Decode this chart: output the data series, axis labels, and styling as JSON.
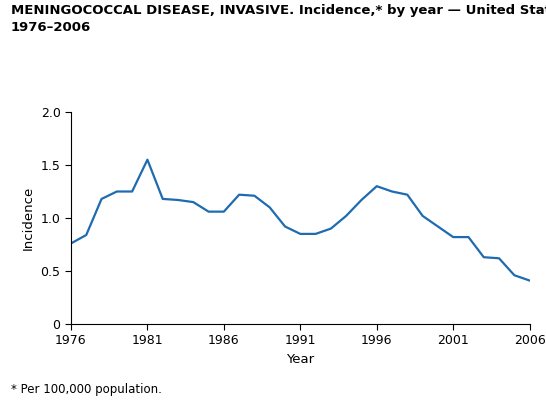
{
  "title_line1": "MENINGOCOCCAL DISEASE, INVASIVE. Incidence,* by year — United States,",
  "title_line2": "1976–2006",
  "xlabel": "Year",
  "ylabel": "Incidence",
  "footnote": "* Per 100,000 population.",
  "line_color": "#1F6BB0",
  "line_width": 1.6,
  "years": [
    1976,
    1977,
    1978,
    1979,
    1980,
    1981,
    1982,
    1983,
    1984,
    1985,
    1986,
    1987,
    1988,
    1989,
    1990,
    1991,
    1992,
    1993,
    1994,
    1995,
    1996,
    1997,
    1998,
    1999,
    2000,
    2001,
    2002,
    2003,
    2004,
    2005,
    2006
  ],
  "values": [
    0.76,
    0.84,
    1.18,
    1.25,
    1.25,
    1.55,
    1.18,
    1.17,
    1.15,
    1.06,
    1.06,
    1.22,
    1.21,
    1.1,
    0.92,
    0.85,
    0.85,
    0.9,
    1.02,
    1.17,
    1.3,
    1.25,
    1.22,
    1.02,
    0.92,
    0.82,
    0.82,
    0.63,
    0.62,
    0.46,
    0.41
  ],
  "xlim": [
    1976,
    2006
  ],
  "ylim": [
    0,
    2.0
  ],
  "xticks": [
    1976,
    1981,
    1986,
    1991,
    1996,
    2001,
    2006
  ],
  "yticks": [
    0,
    0.5,
    1.0,
    1.5,
    2.0
  ],
  "background_color": "#ffffff",
  "title_fontsize": 9.5,
  "axis_label_fontsize": 9.5,
  "tick_fontsize": 9.0,
  "footnote_fontsize": 8.5
}
